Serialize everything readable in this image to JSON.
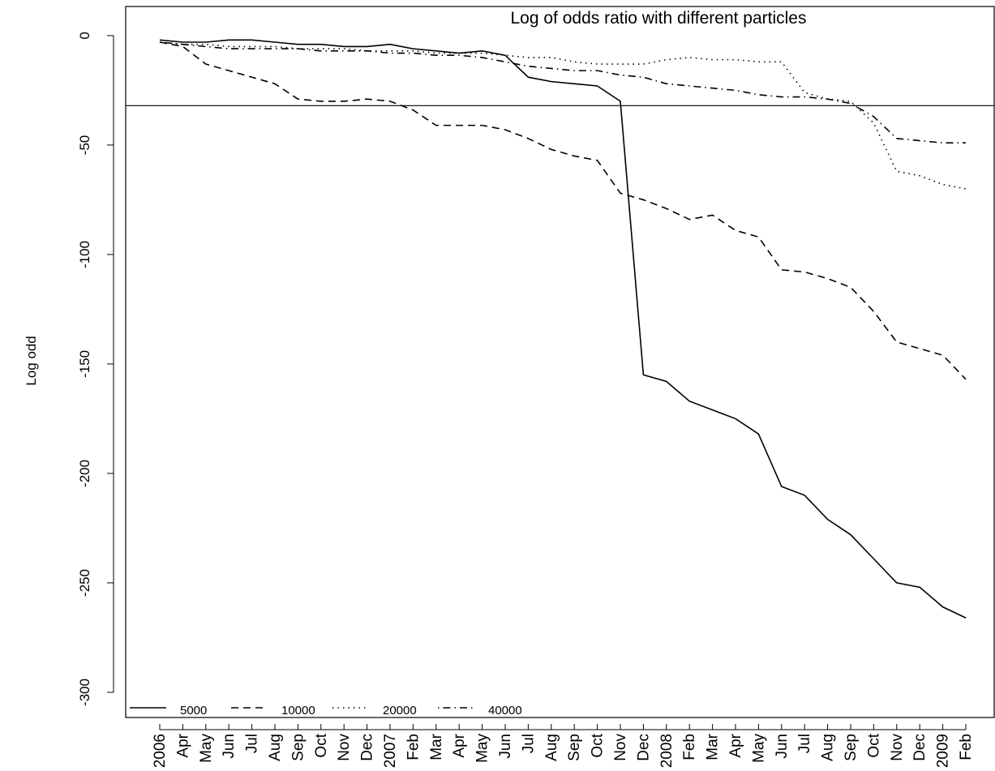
{
  "chart_data": {
    "type": "line",
    "title": "Log of odds ratio with different particles",
    "y_label": "Log odd",
    "categories": [
      "2006",
      "Apr",
      "May",
      "Jun",
      "Jul",
      "Aug",
      "Sep",
      "Oct",
      "Nov",
      "Dec",
      "2007",
      "Feb",
      "Mar",
      "Apr",
      "May",
      "Jun",
      "Jul",
      "Aug",
      "Sep",
      "Oct",
      "Nov",
      "Dec",
      "2008",
      "Feb",
      "Mar",
      "Apr",
      "May",
      "Jun",
      "Jul",
      "Aug",
      "Sep",
      "Oct",
      "Nov",
      "Dec",
      "2009",
      "Feb"
    ],
    "series": [
      {
        "name": "5000",
        "color": "#000000",
        "linestyle": "solid",
        "values": [
          -2,
          -3,
          -3,
          -2,
          -2,
          -3,
          -4,
          -4,
          -5,
          -5,
          -4,
          -6,
          -7,
          -8,
          -7,
          -9,
          -19,
          -21,
          -22,
          -23,
          -30,
          -155,
          -158,
          -167,
          -171,
          -175,
          -182,
          -206,
          -210,
          -221,
          -228,
          -239,
          -250,
          -252,
          -261,
          -266
        ]
      },
      {
        "name": "10000",
        "color": "#000000",
        "linestyle": "dashed",
        "values": [
          -3,
          -5,
          -13,
          -16,
          -19,
          -22,
          -29,
          -30,
          -30,
          -29,
          -30,
          -34,
          -41,
          -41,
          -41,
          -43,
          -47,
          -52,
          -55,
          -57,
          -72,
          -75,
          -79,
          -84,
          -82,
          -89,
          -92,
          -107,
          -108,
          -111,
          -115,
          -126,
          -140,
          -143,
          -146,
          -157
        ]
      },
      {
        "name": "20000",
        "color": "#000000",
        "linestyle": "dotted",
        "values": [
          -3,
          -4,
          -4,
          -5,
          -5,
          -5,
          -6,
          -6,
          -6,
          -7,
          -7,
          -7,
          -8,
          -8,
          -8,
          -9,
          -10,
          -10,
          -12,
          -13,
          -13,
          -13,
          -11,
          -10,
          -11,
          -11,
          -12,
          -12,
          -26,
          -29,
          -30,
          -40,
          -62,
          -64,
          -68,
          -70
        ]
      },
      {
        "name": "40000",
        "color": "#000000",
        "linestyle": "dotdash",
        "values": [
          -3,
          -4,
          -5,
          -6,
          -6,
          -6,
          -6,
          -7,
          -7,
          -7,
          -8,
          -8,
          -9,
          -9,
          -10,
          -12,
          -14,
          -15,
          -16,
          -16,
          -18,
          -19,
          -22,
          -23,
          -24,
          -25,
          -27,
          -28,
          -28,
          -29,
          -31,
          -37,
          -47,
          -48,
          -49,
          -49
        ]
      }
    ],
    "hline": -32,
    "ylim": [
      -311.5,
      13.3
    ],
    "yticks": [
      0,
      -50,
      -100,
      -150,
      -200,
      -250,
      -300
    ],
    "legend": "bottom-left"
  }
}
